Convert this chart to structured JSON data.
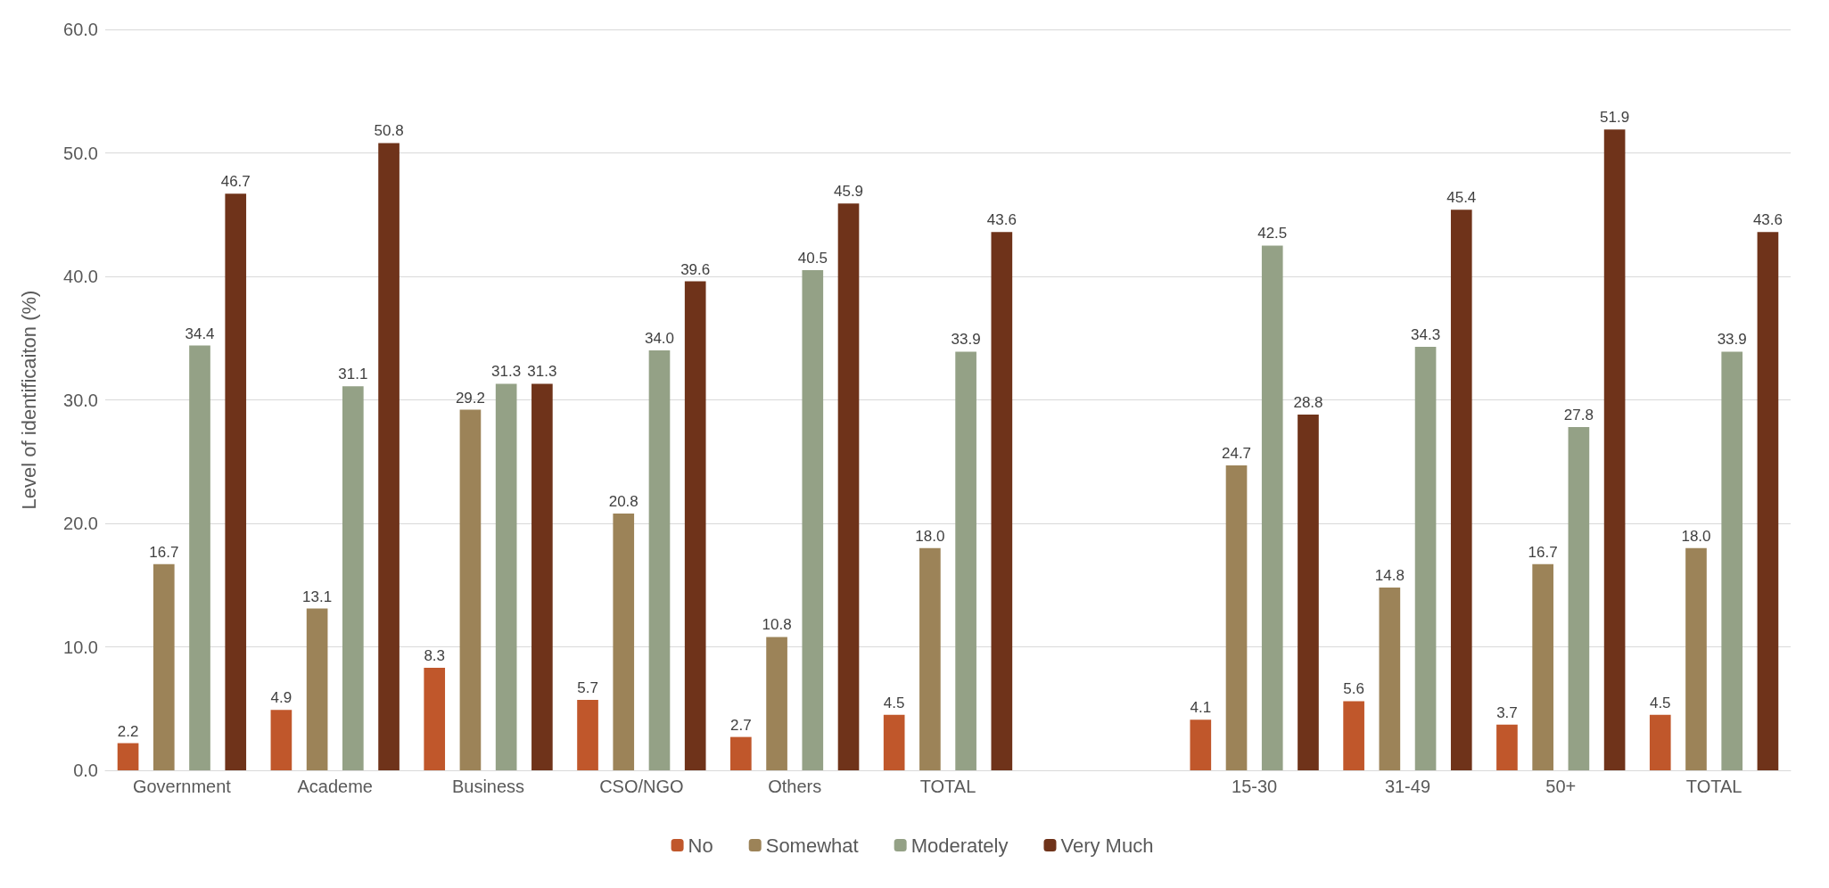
{
  "chart_data": {
    "type": "bar",
    "ylabel": "Level of identificaiton (%)",
    "categories": [
      "Government",
      "Academe",
      "Business",
      "CSO/NGO",
      "Others",
      "TOTAL",
      null,
      "15-30",
      "31-49",
      "50+",
      "TOTAL"
    ],
    "series": [
      {
        "name": "No",
        "color": "#c0572b",
        "values": [
          2.2,
          4.9,
          8.3,
          5.7,
          2.7,
          4.5,
          null,
          4.1,
          5.6,
          3.7,
          4.5
        ],
        "value_labels": [
          "2.2",
          "4.9",
          "8.3",
          "5.7",
          "2.7",
          "4.5",
          null,
          "4.1",
          "5.6",
          "3.7",
          "4.5"
        ]
      },
      {
        "name": "Somewhat",
        "color": "#9c8358",
        "values": [
          16.7,
          13.1,
          29.2,
          20.8,
          10.8,
          18.0,
          null,
          24.7,
          14.8,
          16.7,
          18.0
        ],
        "value_labels": [
          "16.7",
          "13.1",
          "29.2",
          "20.8",
          "10.8",
          "18.0",
          null,
          "24.7",
          "14.8",
          "16.7",
          "18.0"
        ]
      },
      {
        "name": "Moderately",
        "color": "#94a186",
        "values": [
          34.4,
          31.1,
          31.3,
          34.0,
          40.5,
          33.9,
          null,
          42.5,
          34.3,
          27.8,
          33.9
        ],
        "value_labels": [
          "34.4",
          "31.1",
          "31.3",
          "34.0",
          "40.5",
          "33.9",
          null,
          "42.5",
          "34.3",
          "27.8",
          "33.9"
        ]
      },
      {
        "name": "Very Much",
        "color": "#6f331a",
        "values": [
          46.7,
          50.8,
          31.3,
          39.6,
          45.9,
          43.6,
          null,
          28.8,
          45.4,
          51.9,
          43.6
        ],
        "value_labels": [
          "46.7",
          "50.8",
          "31.3",
          "39.6",
          "45.9",
          "43.6",
          null,
          "28.8",
          "45.4",
          "51.9",
          "43.6"
        ]
      }
    ],
    "ylim": [
      0,
      60
    ],
    "yticks": [
      {
        "value": 0,
        "label": "0.0"
      },
      {
        "value": 10,
        "label": "10.0"
      },
      {
        "value": 20,
        "label": "20.0"
      },
      {
        "value": 30,
        "label": "30.0"
      },
      {
        "value": 40,
        "label": "40.0"
      },
      {
        "value": 50,
        "label": "50.0"
      },
      {
        "value": 60,
        "label": "60.0"
      }
    ],
    "grid": "y",
    "legend": "bottom"
  }
}
